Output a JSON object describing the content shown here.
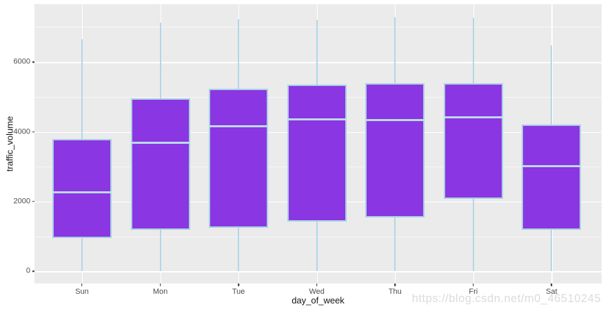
{
  "page": {
    "watermark": "https://blog.csdn.net/m0_46510245",
    "background": "#ffffff"
  },
  "chart_data": {
    "type": "boxplot",
    "title": "",
    "xlabel": "day_of_week",
    "ylabel": "traffic_volume",
    "categories": [
      "Sun",
      "Mon",
      "Tue",
      "Wed",
      "Thu",
      "Fri",
      "Sat"
    ],
    "boxes": [
      {
        "category": "Sun",
        "whisker_low": 0,
        "q1": 950,
        "median": 2270,
        "q3": 3800,
        "whisker_high": 6660
      },
      {
        "category": "Mon",
        "whisker_low": 0,
        "q1": 1190,
        "median": 3690,
        "q3": 4950,
        "whisker_high": 7130
      },
      {
        "category": "Tue",
        "whisker_low": 0,
        "q1": 1250,
        "median": 4150,
        "q3": 5230,
        "whisker_high": 7230
      },
      {
        "category": "Wed",
        "whisker_low": 0,
        "q1": 1420,
        "median": 4350,
        "q3": 5350,
        "whisker_high": 7200
      },
      {
        "category": "Thu",
        "whisker_low": 0,
        "q1": 1540,
        "median": 4330,
        "q3": 5400,
        "whisker_high": 7280
      },
      {
        "category": "Fri",
        "whisker_low": 0,
        "q1": 2070,
        "median": 4410,
        "q3": 5390,
        "whisker_high": 7260
      },
      {
        "category": "Sat",
        "whisker_low": 0,
        "q1": 1190,
        "median": 3010,
        "q3": 4200,
        "whisker_high": 6470
      }
    ],
    "y_axis": {
      "tick_labels": [
        "0",
        "2000",
        "4000",
        "6000"
      ],
      "ticks": [
        0,
        2000,
        4000,
        6000
      ],
      "minor_gridlines": [
        1000,
        3000,
        5000,
        7000
      ],
      "range": [
        -350,
        7660
      ]
    },
    "legend": "none",
    "grid": "on",
    "style": {
      "box_fill": "#8a36e2",
      "box_border": "#a9cfe2",
      "whisker_color": "#b4d6e8",
      "median_color": "#bcdaec",
      "panel_background": "#ebebeb",
      "gridline_color": "#ffffff",
      "tick_color": "#333333",
      "tick_label_color": "#4d4d4d",
      "axis_title_color": "#141414",
      "watermark_color": "#d9d9d9"
    }
  }
}
